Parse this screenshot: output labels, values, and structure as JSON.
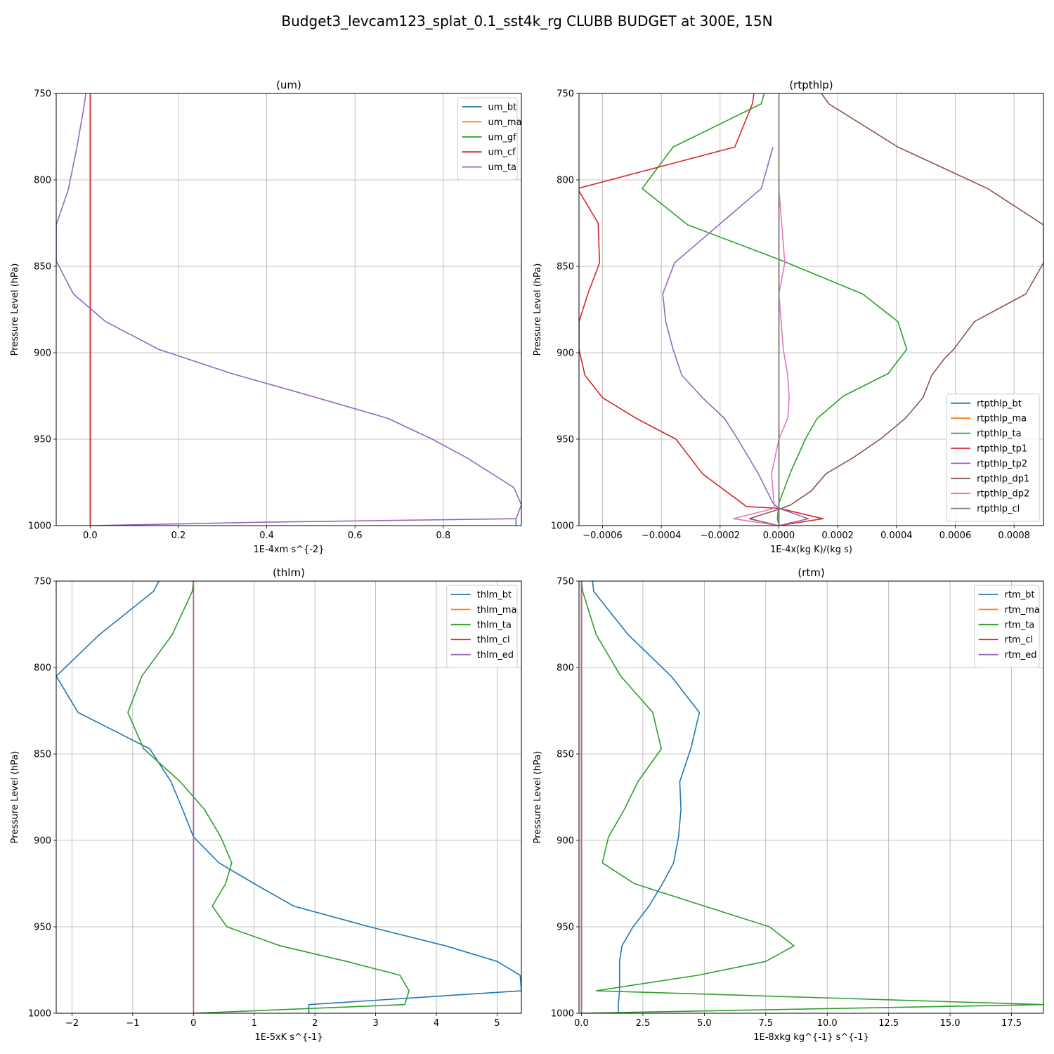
{
  "figure": {
    "title": "Budget3_levcam123_splat_0.1_sst4k_rg CLUBB BUDGET at 300E, 15N"
  },
  "colors": {
    "blue": "#1f77b4",
    "orange": "#ff7f0e",
    "green": "#2ca02c",
    "red": "#d62728",
    "purple": "#9467bd",
    "brown": "#8c564b",
    "pink": "#e377c2",
    "gray": "#7f7f7f"
  },
  "chart_data": [
    {
      "type": "line",
      "title": "(um)",
      "xlabel": "1E-4xm s^{-2}",
      "ylabel": "Pressure Level (hPa)",
      "xlim": [
        -0.077,
        0.977
      ],
      "ylim": [
        1000,
        750
      ],
      "xticks": [
        0.0,
        0.2,
        0.4,
        0.6,
        0.8
      ],
      "xtick_labels": [
        "0.0",
        "0.2",
        "0.4",
        "0.6",
        "0.8"
      ],
      "yticks": [
        750,
        800,
        850,
        900,
        950,
        1000
      ],
      "ytick_labels": [
        "750",
        "800",
        "850",
        "900",
        "950",
        "1000"
      ],
      "grid": true,
      "legend": "upper right",
      "series": [
        {
          "name": "um_bt",
          "color": "blue",
          "x": [
            0.965,
            0.965
          ],
          "y": [
            1000,
            996
          ]
        },
        {
          "name": "um_ma",
          "color": "orange",
          "x": [
            0,
            0
          ],
          "y": [
            750,
            1000
          ]
        },
        {
          "name": "um_gf",
          "color": "green",
          "x": [
            0,
            0
          ],
          "y": [
            750,
            1000
          ]
        },
        {
          "name": "um_cf",
          "color": "red",
          "x": [
            0,
            0
          ],
          "y": [
            750,
            1000
          ]
        },
        {
          "name": "um_ta",
          "color": "purple",
          "x": [
            -0.01,
            -0.013,
            -0.03,
            -0.05,
            -0.077,
            -0.077,
            -0.038,
            0.035,
            0.155,
            0.32,
            0.5,
            0.675,
            0.775,
            0.855,
            0.96,
            0.977,
            0.965,
            0.4,
            0.0
          ],
          "y": [
            750,
            756,
            781,
            806,
            826,
            847,
            866,
            882,
            898,
            912,
            925,
            938,
            950,
            961,
            978,
            988,
            996,
            998,
            1000
          ]
        }
      ]
    },
    {
      "type": "line",
      "title": "(rtpthlp)",
      "xlabel": "1E-4x(kg K)/(kg s)",
      "ylabel": "Pressure Level (hPa)",
      "xlim": [
        -0.00068,
        0.0009
      ],
      "ylim": [
        1000,
        750
      ],
      "xticks": [
        -0.0006,
        -0.0004,
        -0.0002,
        0.0,
        0.0002,
        0.0004,
        0.0006,
        0.0008
      ],
      "xtick_labels": [
        "−0.0006",
        "−0.0004",
        "−0.0002",
        "0.0000",
        "0.0002",
        "0.0004",
        "0.0006",
        "0.0008"
      ],
      "yticks": [
        750,
        800,
        850,
        900,
        950,
        1000
      ],
      "ytick_labels": [
        "750",
        "800",
        "850",
        "900",
        "950",
        "1000"
      ],
      "grid": true,
      "legend": "lower right",
      "series": [
        {
          "name": "rtpthlp_bt",
          "color": "blue",
          "x": [
            0,
            0
          ],
          "y": [
            750,
            1000
          ]
        },
        {
          "name": "rtpthlp_ma",
          "color": "orange",
          "x": [
            0,
            0
          ],
          "y": [
            750,
            1000
          ]
        },
        {
          "name": "rtpthlp_ta",
          "color": "green",
          "x": [
            -5e-05,
            -6e-05,
            -0.00036,
            -0.000465,
            -0.00031,
            0.0,
            0.000285,
            0.000405,
            0.000435,
            0.000372,
            0.00022,
            0.00013,
            9e-05,
            4e-05,
            0.0,
            -5e-06,
            0.0
          ],
          "y": [
            750,
            756,
            781,
            805,
            826,
            846,
            866,
            882,
            898,
            912,
            925,
            938,
            950,
            969,
            987,
            996,
            1000
          ]
        },
        {
          "name": "rtpthlp_tp1",
          "color": "red",
          "x": [
            -8.5e-05,
            -9e-05,
            -0.00015,
            -0.000685,
            -0.000615,
            -0.00061,
            -0.00065,
            -0.00068,
            -0.00068,
            -0.00066,
            -0.0006,
            -0.000485,
            -0.00035,
            -0.00026,
            -0.00011,
            0.0,
            0.00015,
            0.0
          ],
          "y": [
            750,
            756,
            781,
            805,
            825,
            848,
            866,
            882,
            898,
            913,
            926,
            938,
            950,
            970,
            989,
            990,
            996,
            1000
          ]
        },
        {
          "name": "rtpthlp_tp2",
          "color": "purple",
          "x": [
            -2e-05,
            -6e-05,
            -0.000355,
            -0.000395,
            -0.000385,
            -0.00036,
            -0.00033,
            -0.00026,
            -0.000185,
            -0.00014,
            -7e-05,
            -2e-05,
            0.0,
            0.0001,
            0.0
          ],
          "y": [
            781,
            805,
            848,
            866,
            882,
            898,
            913,
            926,
            938,
            950,
            970,
            987,
            990,
            996,
            1000
          ]
        },
        {
          "name": "rtpthlp_dp1",
          "color": "brown",
          "x": [
            0.000145,
            0.00017,
            0.000405,
            0.00071,
            0.0009,
            0.0009,
            0.00084,
            0.000665,
            0.000595,
            0.000565,
            0.00052,
            0.00049,
            0.00043,
            0.000345,
            0.00025,
            0.00016,
            0.00011,
            4e-05,
            1e-05,
            -0.0001,
            0.0
          ],
          "y": [
            750,
            756,
            781,
            805,
            826,
            848,
            866,
            882,
            898,
            903,
            913,
            926,
            938,
            950,
            961,
            970,
            980,
            988,
            990,
            996,
            1000
          ]
        },
        {
          "name": "rtpthlp_dp2",
          "color": "pink",
          "x": [
            0.0,
            2e-05,
            0.0,
            1.5e-05,
            3e-05,
            3.5e-05,
            3e-05,
            0.0,
            -2.5e-05,
            -1.5e-05,
            -0.000155,
            0.0
          ],
          "y": [
            805,
            848,
            866,
            898,
            913,
            926,
            938,
            950,
            970,
            990,
            996,
            1000
          ]
        },
        {
          "name": "rtpthlp_cl",
          "color": "gray",
          "x": [
            0,
            0
          ],
          "y": [
            750,
            1000
          ]
        }
      ]
    },
    {
      "type": "line",
      "title": "(thlm)",
      "xlabel": "1E-5xK s^{-1}",
      "ylabel": "Pressure Level (hPa)",
      "xlim": [
        -2.26,
        5.4
      ],
      "ylim": [
        1000,
        750
      ],
      "xticks": [
        -2,
        -1,
        0,
        1,
        2,
        3,
        4,
        5
      ],
      "xtick_labels": [
        "−2",
        "−1",
        "0",
        "1",
        "2",
        "3",
        "4",
        "5"
      ],
      "yticks": [
        750,
        800,
        850,
        900,
        950,
        1000
      ],
      "ytick_labels": [
        "750",
        "800",
        "850",
        "900",
        "950",
        "1000"
      ],
      "grid": true,
      "legend": "upper right",
      "series": [
        {
          "name": "thlm_bt",
          "color": "blue",
          "x": [
            -0.57,
            -0.66,
            -1.55,
            -2.26,
            -1.9,
            -0.72,
            -0.37,
            -0.18,
            0.0,
            0.42,
            1.0,
            1.65,
            2.9,
            4.15,
            5.0,
            5.38,
            5.4,
            1.9,
            1.9
          ],
          "y": [
            750,
            756,
            781,
            805,
            826,
            847,
            866,
            882,
            898,
            913,
            925,
            938,
            950,
            961,
            970,
            978,
            987,
            995,
            1000
          ]
        },
        {
          "name": "thlm_ma",
          "color": "orange",
          "x": [
            0,
            0
          ],
          "y": [
            750,
            1000
          ]
        },
        {
          "name": "thlm_ta",
          "color": "green",
          "x": [
            0.0,
            -0.02,
            -0.35,
            -0.85,
            -1.08,
            -0.82,
            -0.22,
            0.18,
            0.45,
            0.63,
            0.53,
            0.31,
            0.55,
            1.43,
            2.52,
            3.4,
            3.55,
            3.48,
            0.0
          ],
          "y": [
            750,
            756,
            781,
            805,
            826,
            847,
            866,
            882,
            898,
            913,
            925,
            938,
            950,
            961,
            970,
            978,
            987,
            995,
            1000
          ]
        },
        {
          "name": "thlm_cl",
          "color": "red",
          "x": [
            0,
            0
          ],
          "y": [
            750,
            1000
          ]
        },
        {
          "name": "thlm_ed",
          "color": "purple",
          "x": [
            0,
            0
          ],
          "y": [
            750,
            1000
          ]
        }
      ]
    },
    {
      "type": "line",
      "title": "(rtm)",
      "xlabel": "1E-8xkg kg^{-1} s^{-1}",
      "ylabel": "Pressure Level (hPa)",
      "xlim": [
        -0.1,
        18.8
      ],
      "ylim": [
        1000,
        750
      ],
      "xticks": [
        0.0,
        2.5,
        5.0,
        7.5,
        10.0,
        12.5,
        15.0,
        17.5
      ],
      "xtick_labels": [
        "0.0",
        "2.5",
        "5.0",
        "7.5",
        "10.0",
        "12.5",
        "15.0",
        "17.5"
      ],
      "yticks": [
        750,
        800,
        850,
        900,
        950,
        1000
      ],
      "ytick_labels": [
        "750",
        "800",
        "850",
        "900",
        "950",
        "1000"
      ],
      "grid": true,
      "legend": "upper right",
      "series": [
        {
          "name": "rtm_bt",
          "color": "blue",
          "x": [
            0.45,
            0.5,
            1.9,
            3.65,
            4.8,
            4.45,
            4.0,
            4.05,
            3.95,
            3.75,
            3.3,
            2.75,
            2.1,
            1.65,
            1.55,
            1.55,
            1.55,
            1.5,
            1.5
          ],
          "y": [
            750,
            756,
            781,
            805,
            826,
            847,
            866,
            882,
            898,
            913,
            925,
            938,
            950,
            961,
            970,
            978,
            987,
            995,
            1000
          ]
        },
        {
          "name": "rtm_ma",
          "color": "orange",
          "x": [
            0,
            0
          ],
          "y": [
            750,
            1000
          ]
        },
        {
          "name": "rtm_ta",
          "color": "green",
          "x": [
            0.0,
            0.05,
            0.6,
            1.6,
            2.9,
            3.25,
            2.3,
            1.75,
            1.1,
            0.85,
            2.15,
            5.0,
            7.65,
            8.65,
            7.5,
            4.75,
            0.6,
            18.8,
            0.0
          ],
          "y": [
            750,
            756,
            781,
            805,
            826,
            847,
            866,
            882,
            898,
            913,
            925,
            938,
            950,
            961,
            970,
            978,
            987,
            995,
            1000
          ]
        },
        {
          "name": "rtm_cl",
          "color": "red",
          "x": [
            0,
            0
          ],
          "y": [
            750,
            1000
          ]
        },
        {
          "name": "rtm_ed",
          "color": "purple",
          "x": [
            0,
            0
          ],
          "y": [
            750,
            1000
          ]
        }
      ]
    }
  ]
}
